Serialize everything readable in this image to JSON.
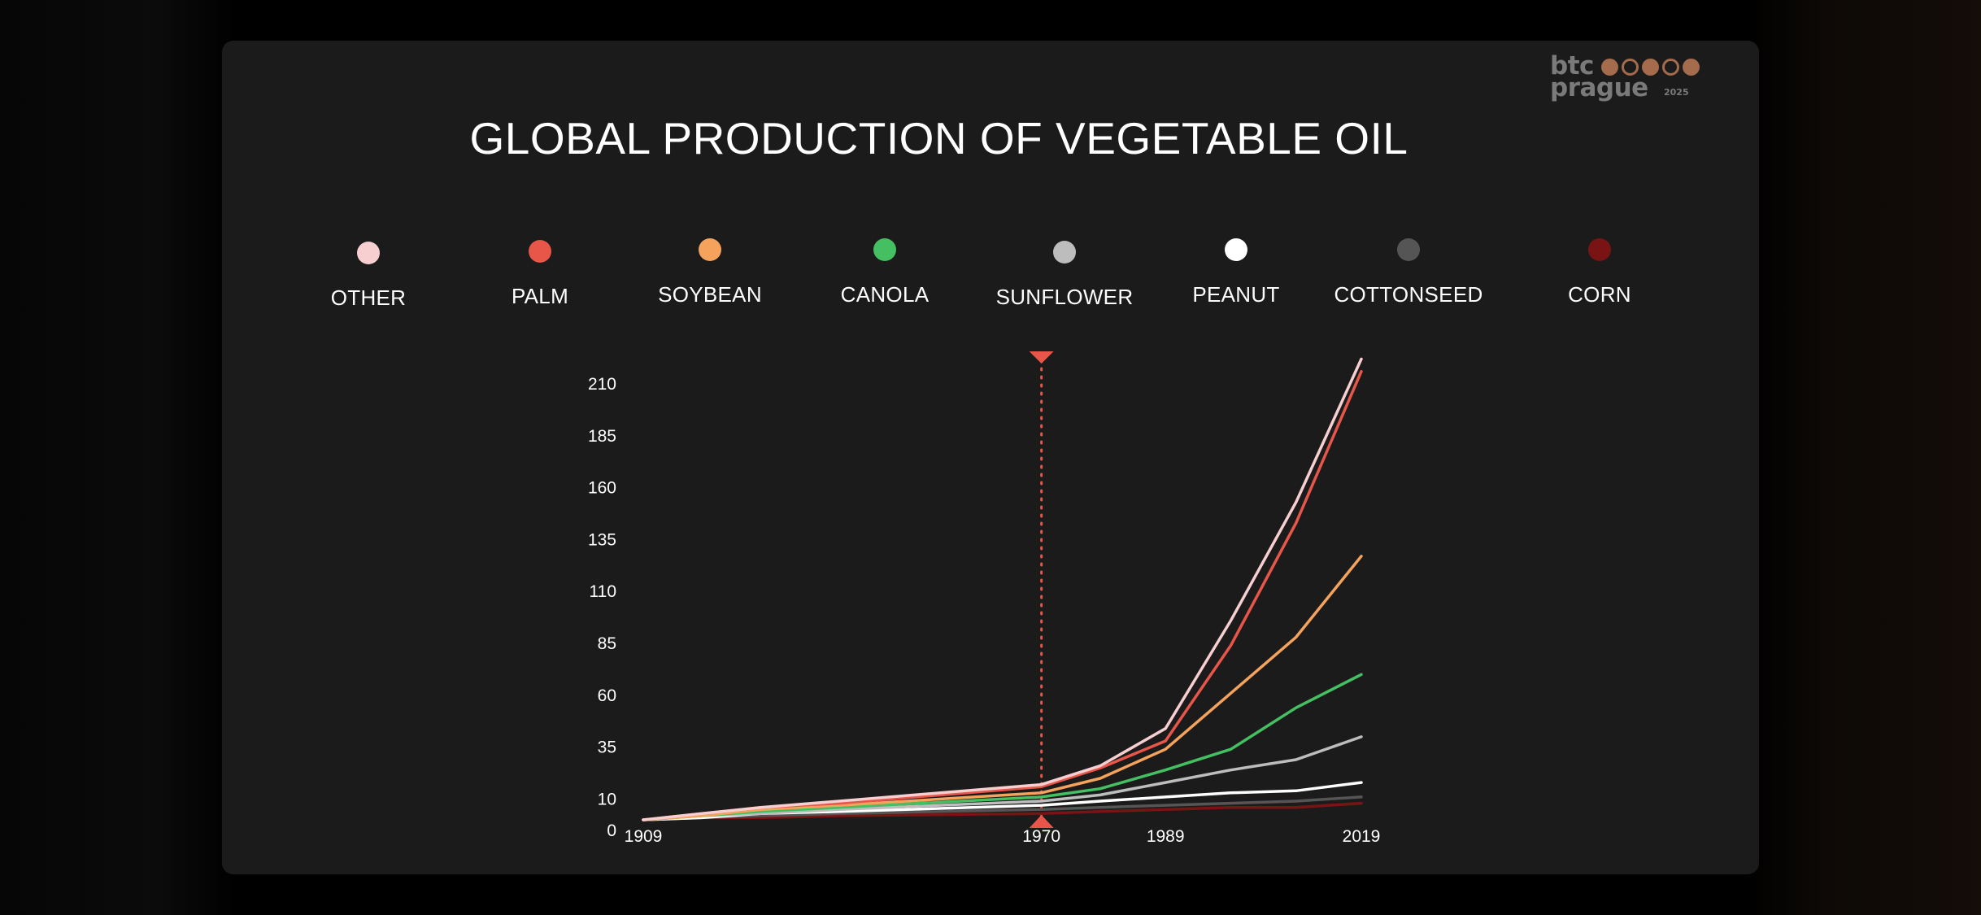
{
  "logo": {
    "line1": "btc",
    "line2": "prague",
    "year": "2025",
    "color": "#a46b4c"
  },
  "chart_data": {
    "type": "line",
    "title": "GLOBAL PRODUCTION OF VEGETABLE OIL",
    "xlabel": "",
    "ylabel": "",
    "ylim": [
      0,
      210
    ],
    "yticks": [
      0,
      10,
      35,
      60,
      85,
      110,
      135,
      160,
      185,
      210
    ],
    "xlim": [
      1909,
      2019
    ],
    "xticks": [
      1909,
      1970,
      1989,
      2019
    ],
    "grid": false,
    "legend_position": "top",
    "marker": {
      "x": 1970,
      "style": "dotted",
      "color": "#e8564a"
    },
    "x": [
      1909,
      1918,
      1927,
      1939,
      1970,
      1979,
      1989,
      1999,
      2009,
      2019
    ],
    "series": [
      {
        "name": "OTHER",
        "color": "#f7cfd1",
        "values": [
          0,
          3,
          6,
          9,
          17,
          26,
          44,
          96,
          153,
          222
        ]
      },
      {
        "name": "PALM",
        "color": "#e8564a",
        "values": [
          0,
          3,
          6,
          8,
          16,
          25,
          38,
          84,
          143,
          216
        ]
      },
      {
        "name": "SOYBEAN",
        "color": "#f5a35c",
        "values": [
          0,
          2,
          5,
          7,
          13,
          20,
          34,
          61,
          88,
          127
        ]
      },
      {
        "name": "CANOLA",
        "color": "#44c062",
        "values": [
          0,
          2,
          4,
          6,
          11,
          15,
          24,
          34,
          54,
          70
        ]
      },
      {
        "name": "SUNFLOWER",
        "color": "#bdbdbd",
        "values": [
          0,
          2,
          3,
          5,
          9,
          12,
          18,
          24,
          29,
          40
        ]
      },
      {
        "name": "PEANUT",
        "color": "#ffffff",
        "values": [
          0,
          1,
          3,
          4,
          7,
          9,
          11,
          13,
          14,
          18
        ]
      },
      {
        "name": "COTTONSEED",
        "color": "#555555",
        "values": [
          0,
          1,
          2,
          3,
          5,
          6,
          7,
          8,
          9,
          11
        ]
      },
      {
        "name": "CORN",
        "color": "#7a1414",
        "values": [
          0,
          1,
          1,
          2,
          3,
          4,
          5,
          6,
          6,
          8
        ]
      }
    ]
  }
}
